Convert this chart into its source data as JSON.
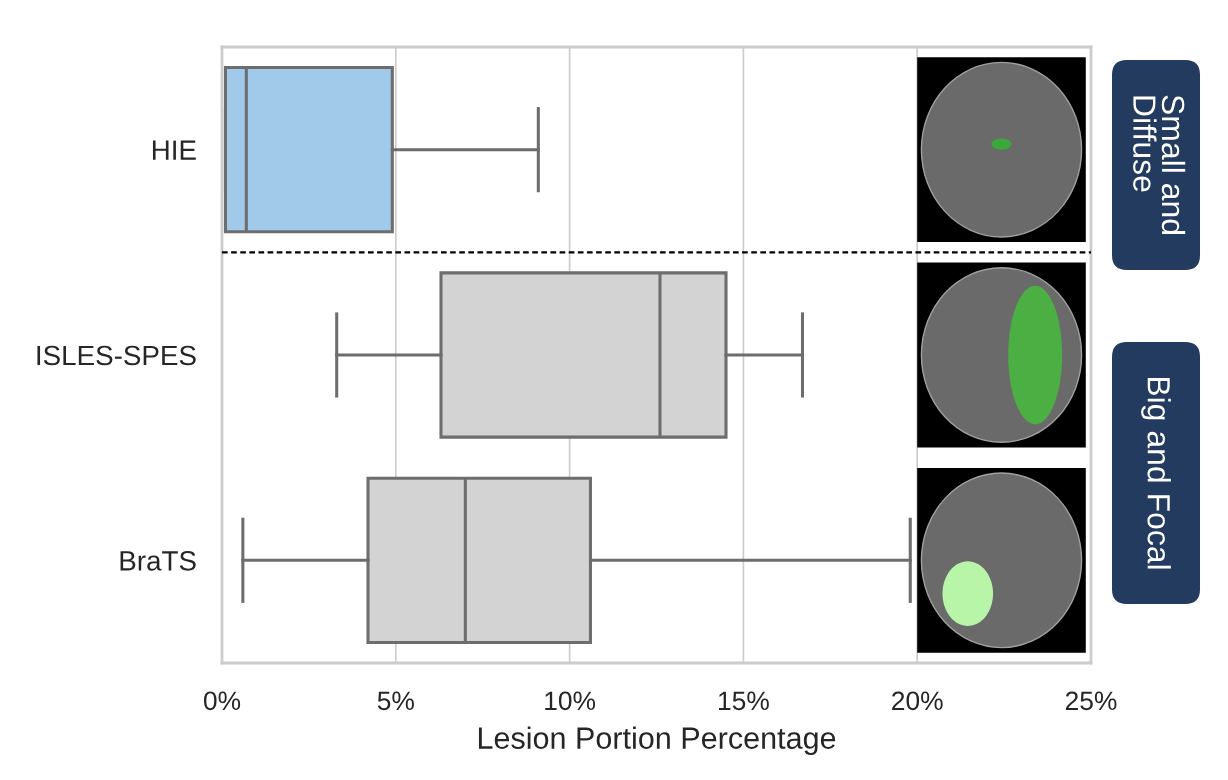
{
  "chart_data": {
    "type": "box",
    "orientation": "horizontal",
    "categories": [
      "HIE",
      "ISLES-SPES",
      "BraTS"
    ],
    "boxes": [
      {
        "low": 0.1,
        "q1": 0.1,
        "median": 0.7,
        "q3": 4.9,
        "high": 9.1
      },
      {
        "low": 3.3,
        "q1": 6.3,
        "median": 12.6,
        "q3": 14.5,
        "high": 16.7
      },
      {
        "low": 0.6,
        "q1": 4.2,
        "median": 7.0,
        "q3": 10.6,
        "high": 19.8
      }
    ],
    "colors": [
      "#a1c9ea",
      "#d3d3d3",
      "#d3d3d3"
    ],
    "xlabel": "Lesion Portion Percentage",
    "xlim": [
      0,
      25
    ],
    "xticks": [
      {
        "value": 0,
        "label": "0%"
      },
      {
        "value": 5,
        "label": "5%"
      },
      {
        "value": 10,
        "label": "10%"
      },
      {
        "value": 15,
        "label": "15%"
      },
      {
        "value": 20,
        "label": "20%"
      },
      {
        "value": 25,
        "label": "25%"
      }
    ],
    "grid": "x",
    "annotations": [
      "Small and\nDiffuse",
      "Big and Focal"
    ]
  }
}
